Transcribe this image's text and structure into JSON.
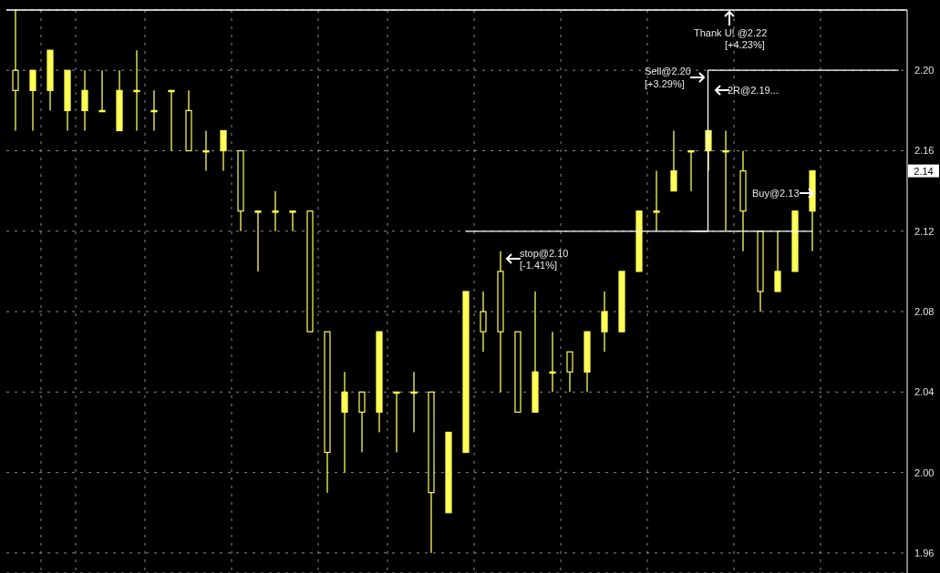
{
  "chart_data": {
    "type": "candlestick",
    "color": "#ffff55",
    "categories": [
      null,
      null,
      null,
      null,
      null,
      null,
      null,
      null,
      null,
      null,
      null,
      null,
      null,
      null,
      null,
      null,
      null,
      null,
      null,
      null,
      null,
      null,
      null,
      null,
      null,
      null,
      null,
      null,
      null,
      null,
      null,
      null,
      null,
      null,
      null,
      null,
      null,
      null,
      null,
      null,
      null,
      null,
      null,
      null,
      null,
      null,
      null,
      null,
      null,
      null,
      null,
      null
    ],
    "ohlc": [
      [
        2.2,
        2.23,
        2.17,
        2.19
      ],
      [
        2.19,
        2.2,
        2.17,
        2.2
      ],
      [
        2.19,
        2.21,
        2.18,
        2.21
      ],
      [
        2.18,
        2.2,
        2.17,
        2.2
      ],
      [
        2.18,
        2.2,
        2.17,
        2.19
      ],
      [
        2.18,
        2.2,
        2.18,
        2.18
      ],
      [
        2.17,
        2.2,
        2.17,
        2.19
      ],
      [
        2.19,
        2.21,
        2.17,
        2.19
      ],
      [
        2.18,
        2.19,
        2.17,
        2.18
      ],
      [
        2.19,
        2.19,
        2.16,
        2.19
      ],
      [
        2.18,
        2.19,
        2.16,
        2.16
      ],
      [
        2.16,
        2.17,
        2.15,
        2.16
      ],
      [
        2.16,
        2.17,
        2.15,
        2.17
      ],
      [
        2.16,
        2.16,
        2.12,
        2.13
      ],
      [
        2.13,
        2.13,
        2.1,
        2.13
      ],
      [
        2.13,
        2.14,
        2.12,
        2.13
      ],
      [
        2.13,
        2.13,
        2.12,
        2.13
      ],
      [
        2.13,
        2.13,
        2.07,
        2.07
      ],
      [
        2.07,
        2.07,
        1.99,
        2.01
      ],
      [
        2.03,
        2.05,
        2.0,
        2.04
      ],
      [
        2.04,
        2.04,
        2.01,
        2.03
      ],
      [
        2.03,
        2.07,
        2.02,
        2.07
      ],
      [
        2.04,
        2.04,
        2.01,
        2.04
      ],
      [
        2.04,
        2.05,
        2.02,
        2.04
      ],
      [
        2.04,
        2.04,
        1.96,
        1.99
      ],
      [
        1.98,
        2.02,
        1.98,
        2.02
      ],
      [
        2.01,
        2.09,
        2.01,
        2.09
      ],
      [
        2.08,
        2.09,
        2.06,
        2.07
      ],
      [
        2.1,
        2.11,
        2.04,
        2.07
      ],
      [
        2.07,
        2.07,
        2.03,
        2.03
      ],
      [
        2.03,
        2.09,
        2.03,
        2.05
      ],
      [
        2.05,
        2.07,
        2.04,
        2.05
      ],
      [
        2.06,
        2.06,
        2.04,
        2.05
      ],
      [
        2.05,
        2.07,
        2.04,
        2.07
      ],
      [
        2.07,
        2.09,
        2.06,
        2.08
      ],
      [
        2.07,
        2.1,
        2.07,
        2.1
      ],
      [
        2.1,
        2.13,
        2.1,
        2.13
      ],
      [
        2.13,
        2.15,
        2.12,
        2.13
      ],
      [
        2.14,
        2.17,
        2.14,
        2.15
      ],
      [
        2.16,
        2.16,
        2.14,
        2.16
      ],
      [
        2.16,
        2.17,
        2.15,
        2.17
      ],
      [
        2.16,
        2.17,
        2.12,
        2.16
      ],
      [
        2.15,
        2.16,
        2.11,
        2.13
      ],
      [
        2.12,
        2.12,
        2.08,
        2.09
      ],
      [
        2.09,
        2.12,
        2.09,
        2.1
      ],
      [
        2.1,
        2.13,
        2.1,
        2.13
      ],
      [
        2.13,
        2.15,
        2.11,
        2.15
      ],
      null,
      null,
      null,
      null,
      null
    ],
    "series": [
      {
        "type": "step",
        "color": "#ffffff",
        "values": [
          null,
          null,
          null,
          null,
          null,
          null,
          null,
          null,
          null,
          null,
          null,
          null,
          null,
          null,
          null,
          null,
          null,
          null,
          null,
          null,
          null,
          null,
          null,
          null,
          null,
          null,
          2.12,
          2.12,
          2.12,
          2.12,
          2.12,
          2.12,
          2.12,
          2.12,
          2.12,
          2.12,
          2.12,
          2.12,
          2.12,
          2.12,
          2.12,
          2.12,
          2.12,
          2.12,
          2.12,
          2.12,
          2.12,
          null,
          null,
          null,
          null,
          null
        ]
      },
      {
        "type": "step",
        "color": "#ffffff",
        "values": [
          null,
          null,
          null,
          null,
          null,
          null,
          null,
          null,
          null,
          null,
          null,
          null,
          null,
          null,
          null,
          null,
          null,
          null,
          null,
          null,
          null,
          null,
          null,
          null,
          null,
          null,
          null,
          null,
          null,
          null,
          null,
          null,
          null,
          null,
          null,
          null,
          null,
          null,
          null,
          2.12,
          2.2,
          2.2,
          2.2,
          2.2,
          2.2,
          2.2,
          2.2,
          2.2,
          2.2,
          2.2,
          2.2,
          2.2
        ]
      }
    ],
    "ylim": [
      1.95,
      2.23
    ],
    "yticks": [
      1.96,
      {
        "value": 2,
        "label": "2.00"
      },
      2.04,
      2.08,
      2.12,
      2.16,
      {
        "value": 2.2,
        "label": "2.20"
      }
    ],
    "grid": true,
    "tick_labels": "y",
    "annotations": [
      "Thank U! @2.22",
      "[+4.23%]",
      "Sell@2.20",
      "[+3.29%]",
      "2R@2.19...",
      "stop@2.10",
      "[-1.41%]",
      "Buy@2.13",
      "2.14"
    ]
  }
}
